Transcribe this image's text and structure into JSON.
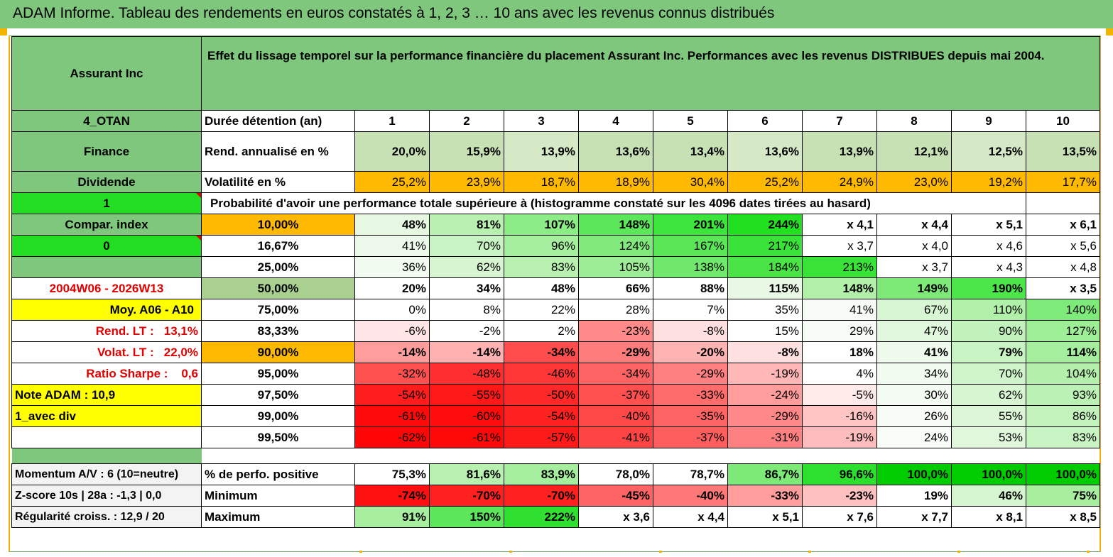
{
  "title": "ADAM Informe. Tableau des rendements en euros constatés à 1, 2, 3 … 10 ans avec les revenus connus distribués",
  "header": {
    "asset": "Assurant Inc",
    "description": "Effet du lissage temporel sur la performance financière du placement Assurant Inc. Performances avec les revenus DISTRIBUES depuis mai 2004."
  },
  "side": {
    "group": "4_OTAN",
    "sector": "Finance",
    "type": "Dividende",
    "flag1": "1",
    "compar": "Compar. index",
    "flag0": "0",
    "period": "2004W06 - 2026W13",
    "moy": "Moy. A06 - A10",
    "rend_lt_label": "Rend. LT :",
    "rend_lt_value": "13,1%",
    "volat_lt_label": "Volat. LT :",
    "volat_lt_value": "22,0%",
    "sharpe_label": "Ratio Sharpe :",
    "sharpe_value": "0,6",
    "note": "Note ADAM : 10,9",
    "avec_div": "1_avec div",
    "momentum": "Momentum A/V : 6 (10=neutre)",
    "zscore": "Z-score 10s | 28a : -1,3 | 0,0",
    "regularite": "Régularité croiss. : 12,9 / 20"
  },
  "labels": {
    "duree": "Durée détention (an)",
    "rend": "Rend. annualisé en %",
    "vol": "Volatilité en %",
    "proba": "Probabilité d'avoir une performance totale supérieure à (histogramme constaté sur les 4096 dates tirées au hasard)",
    "pos": "% de perfo. positive",
    "min": "Minimum",
    "max": "Maximum"
  },
  "years": [
    "1",
    "2",
    "3",
    "4",
    "5",
    "6",
    "7",
    "8",
    "9",
    "10"
  ],
  "rend": [
    "20,0%",
    "15,9%",
    "13,9%",
    "13,6%",
    "13,4%",
    "13,6%",
    "13,9%",
    "12,1%",
    "12,5%",
    "13,5%"
  ],
  "vol": [
    "25,2%",
    "23,9%",
    "18,7%",
    "18,9%",
    "30,4%",
    "25,2%",
    "24,9%",
    "23,0%",
    "19,2%",
    "17,7%"
  ],
  "quantiles": [
    {
      "p": "10,00%",
      "v": [
        "48%",
        "81%",
        "107%",
        "148%",
        "201%",
        "244%",
        "x 4,1",
        "x 4,4",
        "x 5,1",
        "x 6,1"
      ]
    },
    {
      "p": "16,67%",
      "v": [
        "41%",
        "70%",
        "96%",
        "124%",
        "167%",
        "217%",
        "x 3,7",
        "x 4,0",
        "x 4,6",
        "x 5,6"
      ]
    },
    {
      "p": "25,00%",
      "v": [
        "36%",
        "62%",
        "83%",
        "105%",
        "138%",
        "184%",
        "213%",
        "x 3,7",
        "x 4,3",
        "x 4,8"
      ]
    },
    {
      "p": "50,00%",
      "v": [
        "20%",
        "34%",
        "48%",
        "66%",
        "88%",
        "115%",
        "148%",
        "149%",
        "190%",
        "x 3,5"
      ]
    },
    {
      "p": "75,00%",
      "v": [
        "0%",
        "8%",
        "22%",
        "28%",
        "7%",
        "35%",
        "41%",
        "67%",
        "110%",
        "140%"
      ]
    },
    {
      "p": "83,33%",
      "v": [
        "-6%",
        "-2%",
        "2%",
        "-23%",
        "-8%",
        "15%",
        "29%",
        "47%",
        "90%",
        "127%"
      ]
    },
    {
      "p": "90,00%",
      "v": [
        "-14%",
        "-14%",
        "-34%",
        "-29%",
        "-20%",
        "-8%",
        "18%",
        "41%",
        "79%",
        "114%"
      ]
    },
    {
      "p": "95,00%",
      "v": [
        "-32%",
        "-48%",
        "-46%",
        "-34%",
        "-29%",
        "-19%",
        "4%",
        "34%",
        "70%",
        "104%"
      ]
    },
    {
      "p": "97,50%",
      "v": [
        "-54%",
        "-55%",
        "-50%",
        "-37%",
        "-33%",
        "-24%",
        "-5%",
        "30%",
        "62%",
        "93%"
      ]
    },
    {
      "p": "99,00%",
      "v": [
        "-61%",
        "-60%",
        "-54%",
        "-40%",
        "-35%",
        "-29%",
        "-16%",
        "26%",
        "55%",
        "86%"
      ]
    },
    {
      "p": "99,50%",
      "v": [
        "-62%",
        "-61%",
        "-57%",
        "-41%",
        "-37%",
        "-31%",
        "-19%",
        "24%",
        "53%",
        "83%"
      ]
    }
  ],
  "positive": [
    "75,3%",
    "81,6%",
    "83,9%",
    "78,0%",
    "78,7%",
    "86,7%",
    "96,6%",
    "100,0%",
    "100,0%",
    "100,0%"
  ],
  "minimum": [
    "-74%",
    "-70%",
    "-70%",
    "-45%",
    "-40%",
    "-33%",
    "-23%",
    "19%",
    "46%",
    "75%"
  ],
  "maximum": [
    "91%",
    "150%",
    "222%",
    "x 3,6",
    "x 4,4",
    "x 5,1",
    "x 7,6",
    "x 7,7",
    "x 8,1",
    "x 8,5"
  ],
  "colors": {
    "quantiles": [
      [
        "#e6f7e2",
        "#b8f0b0",
        "#8cec85",
        "#5ce65a",
        "#3ce43c",
        "#20e020",
        "#ffffff",
        "#ffffff",
        "#ffffff",
        "#ffffff"
      ],
      [
        "#ecf9ea",
        "#c8f3c2",
        "#a6ef9e",
        "#82ea7c",
        "#5ae657",
        "#39e239",
        "#ffffff",
        "#ffffff",
        "#ffffff",
        "#ffffff"
      ],
      [
        "#f1fbef",
        "#d6f5d0",
        "#b8f0b0",
        "#9ced95",
        "#6fe86b",
        "#4ae447",
        "#38e236",
        "#ffffff",
        "#ffffff",
        "#ffffff"
      ],
      [
        "#ffffff",
        "#ffffff",
        "#ffffff",
        "#ffffff",
        "#ffffff",
        "#e8f8e5",
        "#b2f0aa",
        "#7dea78",
        "#4ce54a",
        "#ffffff"
      ],
      [
        "#ffffff",
        "#ffffff",
        "#ffffff",
        "#ffffff",
        "#ffffff",
        "#ffffff",
        "#f6fcf5",
        "#d8f6d3",
        "#b0f0a8",
        "#7eea79"
      ],
      [
        "#ffe5e5",
        "#ffffff",
        "#ffffff",
        "#ff8a8a",
        "#ffe0e0",
        "#ffffff",
        "#f6fcf5",
        "#e2f8de",
        "#c2f2bb",
        "#9eed97"
      ],
      [
        "#ff9c9c",
        "#ffb0b0",
        "#ff4c4c",
        "#ff7c7c",
        "#ffb4b4",
        "#ffe0e0",
        "#ffffff",
        "#eefaec",
        "#c8f3c2",
        "#a4ee9d"
      ],
      [
        "#ff5050",
        "#ff2e2e",
        "#ff3636",
        "#ff6464",
        "#ff8080",
        "#ffb6b6",
        "#ffffff",
        "#f1fbef",
        "#d0f4ca",
        "#b4efac"
      ],
      [
        "#ff1c1c",
        "#ff1818",
        "#ff2828",
        "#ff5050",
        "#ff6c6c",
        "#ff9c9c",
        "#ffeaea",
        "#f4fbf2",
        "#d8f5d2",
        "#bcf1b5"
      ],
      [
        "#ff0a0a",
        "#ff0c0c",
        "#ff2020",
        "#ff4848",
        "#ff6464",
        "#ff8888",
        "#ffc4c4",
        "#f7fcf6",
        "#ddf6d8",
        "#c4f2bd"
      ],
      [
        "#ff0606",
        "#ff0808",
        "#ff1a1a",
        "#ff4444",
        "#ff5e5e",
        "#ff8080",
        "#ffbcbc",
        "#f8fdf7",
        "#e0f7db",
        "#c8f3c2"
      ]
    ],
    "positive": [
      "#ffffff",
      "#b8f0b0",
      "#a4ee9d",
      "#ffffff",
      "#ffffff",
      "#7dea78",
      "#2ee02e",
      "#00cc00",
      "#00cc00",
      "#00cc00"
    ],
    "minimum": [
      "#ff1010",
      "#ff2020",
      "#ff2020",
      "#ff6464",
      "#ff7878",
      "#ff9c9c",
      "#ffc0c0",
      "#ffffff",
      "#d4f5ce",
      "#a8ee9f"
    ],
    "maximum": [
      "#a8ee9f",
      "#5ce65a",
      "#30e030",
      "#ffffff",
      "#ffffff",
      "#ffffff",
      "#ffffff",
      "#ffffff",
      "#ffffff",
      "#ffffff"
    ]
  }
}
